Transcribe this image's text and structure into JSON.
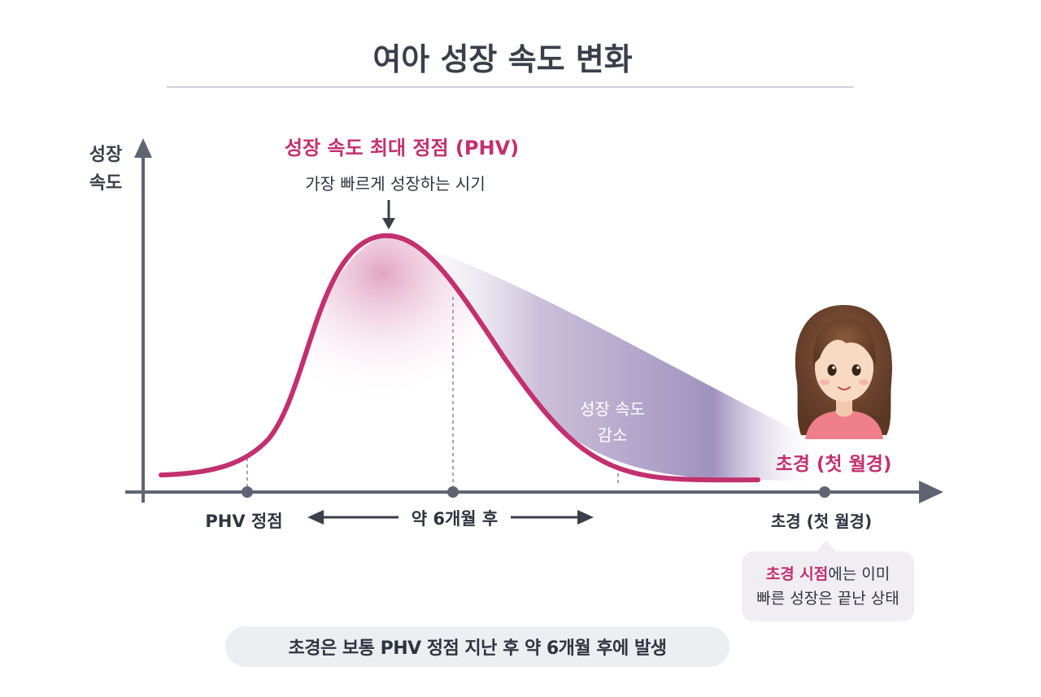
{
  "title": "여아 성장 속도 변화",
  "y_axis_label_line1": "성장",
  "y_axis_label_line2": "속도",
  "peak_label": "성장 속도 최대 정점 (PHV)",
  "peak_sublabel": "가장 빠르게 성장하는 시기",
  "decline_label_line1": "성장 속도",
  "decline_label_line2": "감소",
  "menarche_callout": "초경 (첫 월경)",
  "x_markers": {
    "phv": "PHV 정점",
    "interval": "약 6개월 후",
    "menarche": "초경 (첫 월경)"
  },
  "bubble": {
    "highlight": "초경 시점",
    "rest_line1": "에는 이미",
    "line2": "빠른 성장은 끝난 상태"
  },
  "footer_note": "초경은 보통 PHV 정점 지난 후 약 6개월 후에 발생",
  "colors": {
    "accent": "#c2306f",
    "axis": "#5f6472",
    "curve": "#c2306f",
    "shade": "#8a78ad",
    "title": "#3a3f4a"
  },
  "icons": [
    "girl-avatar-illustration",
    "down-arrow-icon",
    "double-arrow-icon"
  ]
}
